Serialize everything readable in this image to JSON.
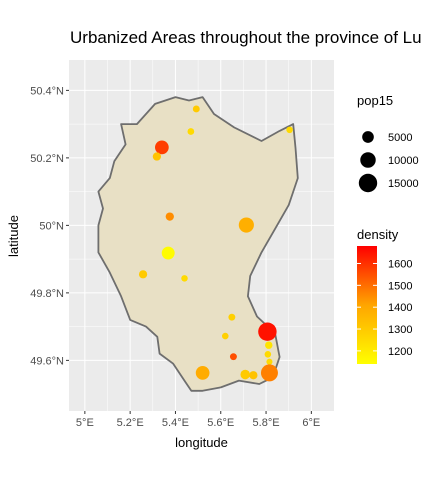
{
  "chart_data": {
    "type": "scatter",
    "title": "Urbanized Areas throughout the province of Lu",
    "xlabel": "longitude",
    "ylabel": "latitude",
    "xlim": [
      4.93,
      6.1
    ],
    "ylim": [
      49.45,
      50.49
    ],
    "x_ticks": [
      {
        "value": 5.0,
        "label": "5°E"
      },
      {
        "value": 5.2,
        "label": "5.2°E"
      },
      {
        "value": 5.4,
        "label": "5.4°E"
      },
      {
        "value": 5.6,
        "label": "5.6°E"
      },
      {
        "value": 5.8,
        "label": "5.8°E"
      },
      {
        "value": 6.0,
        "label": "6°E"
      }
    ],
    "y_ticks": [
      {
        "value": 49.6,
        "label": "49.6°N"
      },
      {
        "value": 49.8,
        "label": "49.8°N"
      },
      {
        "value": 50.0,
        "label": "50°N"
      },
      {
        "value": 50.2,
        "label": "50.2°N"
      },
      {
        "value": 50.4,
        "label": "50.4°N"
      }
    ],
    "grid": true,
    "province_outline": [
      [
        5.16,
        50.3
      ],
      [
        5.23,
        50.3
      ],
      [
        5.31,
        50.36
      ],
      [
        5.4,
        50.38
      ],
      [
        5.46,
        50.37
      ],
      [
        5.52,
        50.38
      ],
      [
        5.57,
        50.33
      ],
      [
        5.66,
        50.29
      ],
      [
        5.78,
        50.25
      ],
      [
        5.86,
        50.28
      ],
      [
        5.92,
        50.3
      ],
      [
        5.93,
        50.23
      ],
      [
        5.94,
        50.14
      ],
      [
        5.9,
        50.06
      ],
      [
        5.84,
        49.99
      ],
      [
        5.78,
        49.92
      ],
      [
        5.73,
        49.85
      ],
      [
        5.72,
        49.79
      ],
      [
        5.76,
        49.73
      ],
      [
        5.84,
        49.68
      ],
      [
        5.86,
        49.61
      ],
      [
        5.83,
        49.55
      ],
      [
        5.77,
        49.53
      ],
      [
        5.68,
        49.54
      ],
      [
        5.6,
        49.52
      ],
      [
        5.52,
        49.51
      ],
      [
        5.47,
        49.51
      ],
      [
        5.43,
        49.55
      ],
      [
        5.39,
        49.59
      ],
      [
        5.33,
        49.62
      ],
      [
        5.32,
        49.67
      ],
      [
        5.27,
        49.7
      ],
      [
        5.2,
        49.72
      ],
      [
        5.16,
        49.79
      ],
      [
        5.11,
        49.86
      ],
      [
        5.06,
        49.92
      ],
      [
        5.06,
        50.0
      ],
      [
        5.08,
        50.05
      ],
      [
        5.06,
        50.1
      ],
      [
        5.11,
        50.14
      ],
      [
        5.13,
        50.19
      ],
      [
        5.18,
        50.24
      ],
      [
        5.16,
        50.3
      ]
    ],
    "points": [
      {
        "x": 5.492,
        "y": 50.345,
        "pop15": 1200,
        "density": 1300
      },
      {
        "x": 5.468,
        "y": 50.278,
        "pop15": 1100,
        "density": 1250
      },
      {
        "x": 5.904,
        "y": 50.283,
        "pop15": 1000,
        "density": 1250
      },
      {
        "x": 5.34,
        "y": 50.231,
        "pop15": 7500,
        "density": 1580
      },
      {
        "x": 5.318,
        "y": 50.204,
        "pop15": 2000,
        "density": 1320
      },
      {
        "x": 5.375,
        "y": 50.026,
        "pop15": 2000,
        "density": 1450
      },
      {
        "x": 5.713,
        "y": 50.001,
        "pop15": 9500,
        "density": 1380
      },
      {
        "x": 5.368,
        "y": 49.918,
        "pop15": 6500,
        "density": 1150
      },
      {
        "x": 5.257,
        "y": 49.855,
        "pop15": 2000,
        "density": 1300
      },
      {
        "x": 5.44,
        "y": 49.843,
        "pop15": 1000,
        "density": 1250
      },
      {
        "x": 5.649,
        "y": 49.728,
        "pop15": 1200,
        "density": 1280
      },
      {
        "x": 5.62,
        "y": 49.672,
        "pop15": 1000,
        "density": 1280
      },
      {
        "x": 5.806,
        "y": 49.685,
        "pop15": 15000,
        "density": 1650
      },
      {
        "x": 5.812,
        "y": 49.645,
        "pop15": 1500,
        "density": 1220
      },
      {
        "x": 5.808,
        "y": 49.618,
        "pop15": 1000,
        "density": 1250
      },
      {
        "x": 5.815,
        "y": 49.596,
        "pop15": 800,
        "density": 1250
      },
      {
        "x": 5.656,
        "y": 49.611,
        "pop15": 1200,
        "density": 1550
      },
      {
        "x": 5.52,
        "y": 49.563,
        "pop15": 7500,
        "density": 1390
      },
      {
        "x": 5.708,
        "y": 49.558,
        "pop15": 3000,
        "density": 1300
      },
      {
        "x": 5.744,
        "y": 49.556,
        "pop15": 2000,
        "density": 1320
      },
      {
        "x": 5.815,
        "y": 49.563,
        "pop15": 12500,
        "density": 1470
      }
    ],
    "size_legend": {
      "title": "pop15",
      "values": [
        5000,
        10000,
        15000
      ],
      "labels": [
        "5000",
        "10000",
        "15000"
      ]
    },
    "color_legend": {
      "title": "density",
      "min": 1140,
      "max": 1680,
      "ticks": [
        1200,
        1300,
        1400,
        1500,
        1600
      ],
      "labels": [
        "1200",
        "1300",
        "1400",
        "1500",
        "1600"
      ],
      "color_low": "#ffff00",
      "color_high": "#ff0000"
    },
    "colors": {
      "panel_bg": "#ebebeb",
      "grid": "#ffffff",
      "province_fill": "#e8e0c5",
      "province_stroke": "#6e6e6e",
      "point_stroke": "#333333"
    }
  }
}
